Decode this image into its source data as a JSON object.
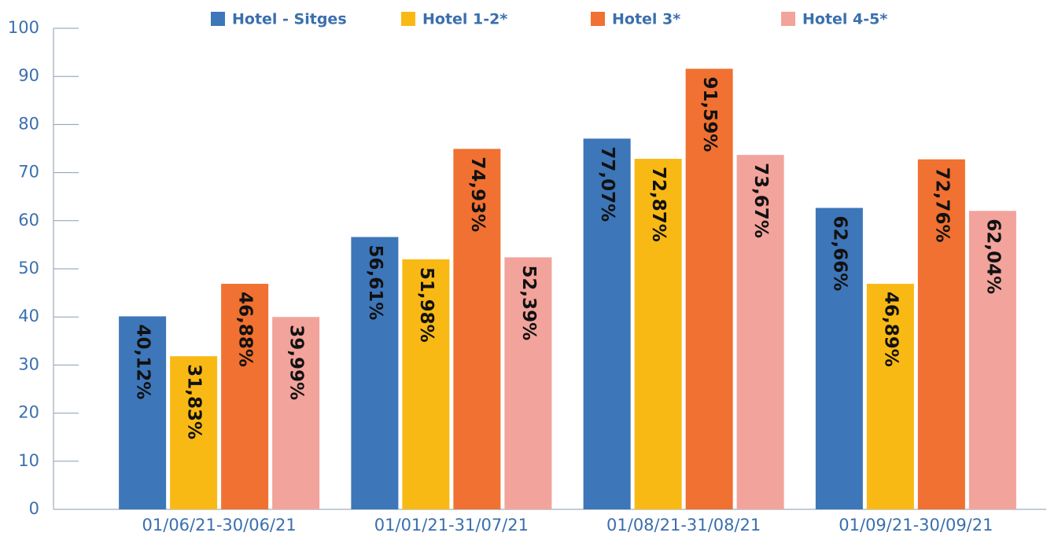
{
  "chart_data": {
    "type": "bar",
    "categories": [
      "01/06/21-30/06/21",
      "01/01/21-31/07/21",
      "01/08/21-31/08/21",
      "01/09/21-30/09/21"
    ],
    "series": [
      {
        "name": "Hotel - Sitges",
        "color": "#3d76b9",
        "values": [
          40.12,
          56.61,
          77.07,
          62.66
        ],
        "value_labels": [
          "40,12%",
          "56,61%",
          "77,07%",
          "62,66%"
        ]
      },
      {
        "name": "Hotel 1-2*",
        "color": "#f9b915",
        "values": [
          31.83,
          51.98,
          72.87,
          46.89
        ],
        "value_labels": [
          "31,83%",
          "51,98%",
          "72,87%",
          "46,89%"
        ]
      },
      {
        "name": "Hotel 3*",
        "color": "#f07131",
        "values": [
          46.88,
          74.93,
          91.59,
          72.76
        ],
        "value_labels": [
          "46,88%",
          "74,93%",
          "91,59%",
          "72,76%"
        ]
      },
      {
        "name": "Hotel 4-5*",
        "color": "#f2a39b",
        "values": [
          39.99,
          52.39,
          73.67,
          62.04
        ],
        "value_labels": [
          "39,99%",
          "52,39%",
          "73,67%",
          "62,04%"
        ]
      }
    ],
    "ylim": [
      0,
      100
    ],
    "yticks": [
      0,
      10,
      20,
      30,
      40,
      50,
      60,
      70,
      80,
      90,
      100
    ]
  }
}
